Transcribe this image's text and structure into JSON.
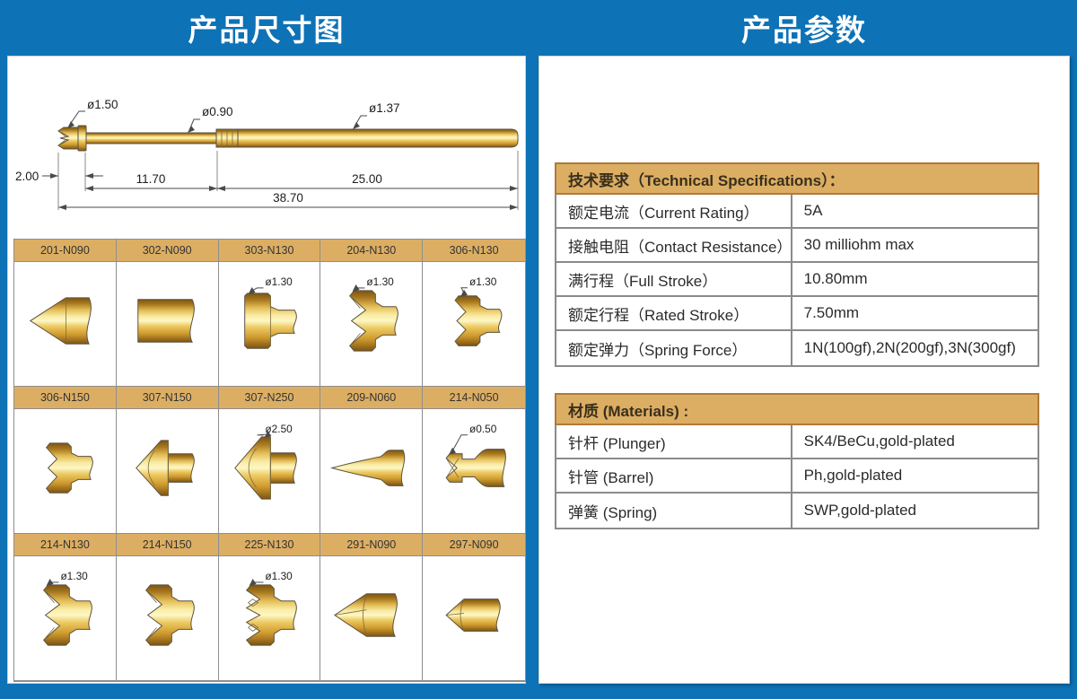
{
  "titles": {
    "left": "产品尺寸图",
    "right": "产品参数"
  },
  "drawing": {
    "dia_tip": "ø1.50",
    "dia_plunger": "ø0.90",
    "dia_barrel": "ø1.37",
    "len_tip": "2.00",
    "len_plunger": "11.70",
    "len_barrel": "25.00",
    "len_total": "38.70"
  },
  "grid": {
    "cells": [
      {
        "model": "201-N090",
        "tip": "cone",
        "label": ""
      },
      {
        "model": "302-N090",
        "tip": "flat",
        "label": ""
      },
      {
        "model": "303-N130",
        "tip": "flathead",
        "label": "ø1.30"
      },
      {
        "model": "204-N130",
        "tip": "crown",
        "label": "ø1.30"
      },
      {
        "model": "306-N130",
        "tip": "crownNotch",
        "label": "ø1.30"
      },
      {
        "model": "306-N150",
        "tip": "crownNotch",
        "label": ""
      },
      {
        "model": "307-N150",
        "tip": "coneHead",
        "label": ""
      },
      {
        "model": "307-N250",
        "tip": "coneHeadLarge",
        "label": "ø2.50"
      },
      {
        "model": "209-N060",
        "tip": "needle",
        "label": ""
      },
      {
        "model": "214-N050",
        "tip": "crownThin",
        "label": "ø0.50"
      },
      {
        "model": "214-N130",
        "tip": "crown",
        "label": "ø1.30"
      },
      {
        "model": "214-N150",
        "tip": "crown",
        "label": ""
      },
      {
        "model": "225-N130",
        "tip": "serrated",
        "label": "ø1.30"
      },
      {
        "model": "291-N090",
        "tip": "pencil",
        "label": ""
      },
      {
        "model": "297-N090",
        "tip": "chisel",
        "label": ""
      }
    ]
  },
  "specs": {
    "header": "技术要求（Technical Specifications）：",
    "rows": [
      {
        "label": "额定电流（Current Rating）",
        "value": "5A"
      },
      {
        "label": "接触电阻（Contact Resistance）",
        "value": "30 milliohm max"
      },
      {
        "label": "满行程（Full Stroke）",
        "value": "10.80mm"
      },
      {
        "label": "额定行程（Rated Stroke）",
        "value": "7.50mm"
      },
      {
        "label": "额定弹力（Spring Force）",
        "value": "1N(100gf),2N(200gf),3N(300gf)"
      }
    ]
  },
  "materials": {
    "header": "材质 (Materials) :",
    "rows": [
      {
        "label": "针杆 (Plunger)",
        "value": "SK4/BeCu,gold-plated"
      },
      {
        "label": "针管 (Barrel)",
        "value": "Ph,gold-plated"
      },
      {
        "label": "弹簧 (Spring)",
        "value": "SWP,gold-plated"
      }
    ]
  },
  "colors": {
    "accent_blue": "#0d72b6",
    "header_tan": "#dcae63",
    "gold_mid": "#e9c25a"
  }
}
